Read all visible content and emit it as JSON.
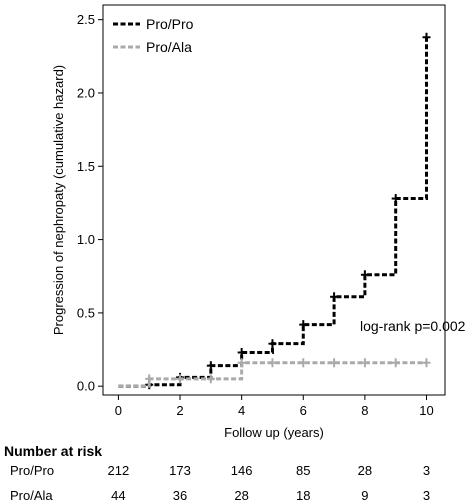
{
  "chart_data": {
    "type": "line",
    "step": true,
    "xlabel": "Follow up (years)",
    "ylabel": "Progression of nephropaty (cumulative hazard)",
    "xlim": [
      -0.5,
      10.6
    ],
    "ylim": [
      -0.06,
      2.6
    ],
    "xticks": [
      0,
      2,
      4,
      6,
      8,
      10
    ],
    "yticks": [
      0.0,
      0.5,
      1.0,
      1.5,
      2.0,
      2.5
    ],
    "ytick_labels": [
      "0.0",
      "0.5",
      "1.0",
      "1.5",
      "2.0",
      "2.5"
    ],
    "legend_position": "top-left",
    "grid": false,
    "annotation": "log-rank p=0.002",
    "series": [
      {
        "name": "Pro/Pro",
        "color": "#000000",
        "x": [
          0,
          1,
          2,
          3,
          4,
          5,
          6,
          7,
          8,
          9,
          10
        ],
        "y": [
          0.0,
          0.01,
          0.06,
          0.14,
          0.23,
          0.29,
          0.42,
          0.61,
          0.76,
          1.28,
          2.38
        ],
        "censor_x": [
          1,
          2,
          3,
          4,
          5,
          6,
          7,
          8,
          9,
          10
        ],
        "censor_y": [
          0.01,
          0.06,
          0.14,
          0.23,
          0.29,
          0.42,
          0.61,
          0.76,
          1.28,
          2.38
        ]
      },
      {
        "name": "Pro/Ala",
        "color": "#aaaaaa",
        "x": [
          0,
          1,
          2,
          3,
          4,
          10
        ],
        "y": [
          0.0,
          0.05,
          0.05,
          0.05,
          0.16,
          0.16
        ],
        "censor_x": [
          1,
          2,
          3,
          4,
          5,
          6,
          7,
          8,
          9,
          10
        ],
        "censor_y": [
          0.05,
          0.05,
          0.05,
          0.16,
          0.16,
          0.16,
          0.16,
          0.16,
          0.16,
          0.16
        ]
      }
    ],
    "risk_table": {
      "title": "Number at risk",
      "rows": [
        {
          "label": "Pro/Pro",
          "values": [
            "212",
            "173",
            "146",
            "85",
            "28",
            "3"
          ]
        },
        {
          "label": "Pro/Ala",
          "values": [
            "44",
            "36",
            "28",
            "18",
            "9",
            "3"
          ]
        }
      ]
    }
  }
}
